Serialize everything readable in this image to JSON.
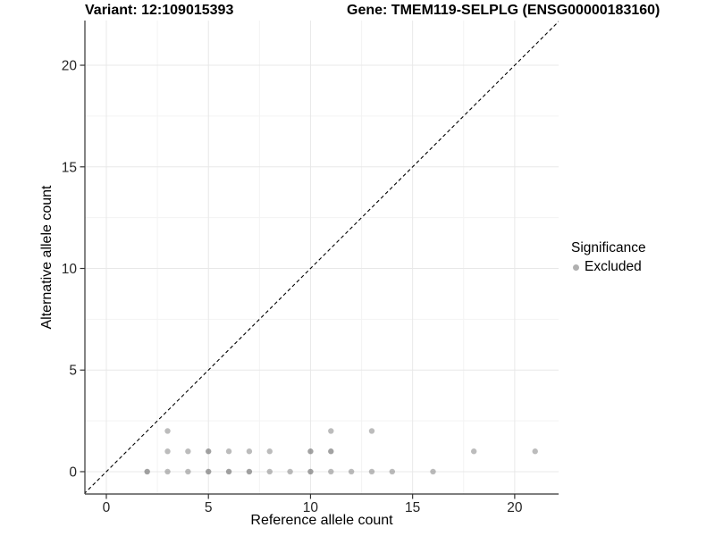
{
  "chart_data": {
    "type": "scatter",
    "title_left": "Variant: 12:109015393",
    "title_right": "Gene: TMEM119-SELPLG (ENSG00000183160)",
    "xlabel": "Reference allele count",
    "ylabel": "Alternative allele count",
    "xlim": [
      -1.05,
      22.15
    ],
    "ylim": [
      -1.1,
      22.2
    ],
    "xticks": [
      0,
      5,
      10,
      15,
      20
    ],
    "yticks": [
      0,
      5,
      10,
      15,
      20
    ],
    "minor_xticks": [
      2.5,
      7.5,
      12.5,
      17.5
    ],
    "minor_yticks": [
      2.5,
      7.5,
      12.5,
      17.5
    ],
    "grid": true,
    "legend": {
      "title": "Significance",
      "position": "right",
      "entries": [
        {
          "label": "Excluded",
          "color": "#b0b0b0"
        }
      ]
    },
    "identity_line": {
      "style": "dashed",
      "color": "#000000",
      "slope": 1,
      "intercept": 0
    },
    "colors": {
      "point_base": "#7a7a7a",
      "major_grid": "#e8e8e8",
      "minor_grid": "#f3f3f3",
      "axis": "#333333"
    },
    "series": [
      {
        "name": "Excluded",
        "color": "#7a7a7a",
        "points": [
          {
            "x": 2,
            "y": 0,
            "alpha": 0.7
          },
          {
            "x": 3,
            "y": 0,
            "alpha": 0.5
          },
          {
            "x": 4,
            "y": 0,
            "alpha": 0.5
          },
          {
            "x": 5,
            "y": 0,
            "alpha": 0.7
          },
          {
            "x": 6,
            "y": 0,
            "alpha": 0.7
          },
          {
            "x": 7,
            "y": 0,
            "alpha": 0.7
          },
          {
            "x": 8,
            "y": 0,
            "alpha": 0.5
          },
          {
            "x": 9,
            "y": 0,
            "alpha": 0.5
          },
          {
            "x": 10,
            "y": 0,
            "alpha": 0.7
          },
          {
            "x": 11,
            "y": 0,
            "alpha": 0.5
          },
          {
            "x": 12,
            "y": 0,
            "alpha": 0.5
          },
          {
            "x": 13,
            "y": 0,
            "alpha": 0.5
          },
          {
            "x": 14,
            "y": 0,
            "alpha": 0.5
          },
          {
            "x": 16,
            "y": 0,
            "alpha": 0.5
          },
          {
            "x": 3,
            "y": 1,
            "alpha": 0.5
          },
          {
            "x": 4,
            "y": 1,
            "alpha": 0.5
          },
          {
            "x": 5,
            "y": 1,
            "alpha": 0.7
          },
          {
            "x": 6,
            "y": 1,
            "alpha": 0.5
          },
          {
            "x": 7,
            "y": 1,
            "alpha": 0.5
          },
          {
            "x": 8,
            "y": 1,
            "alpha": 0.5
          },
          {
            "x": 10,
            "y": 1,
            "alpha": 0.7
          },
          {
            "x": 11,
            "y": 1,
            "alpha": 0.7
          },
          {
            "x": 18,
            "y": 1,
            "alpha": 0.5
          },
          {
            "x": 21,
            "y": 1,
            "alpha": 0.5
          },
          {
            "x": 3,
            "y": 2,
            "alpha": 0.5
          },
          {
            "x": 11,
            "y": 2,
            "alpha": 0.5
          },
          {
            "x": 13,
            "y": 2,
            "alpha": 0.5
          }
        ]
      }
    ]
  }
}
